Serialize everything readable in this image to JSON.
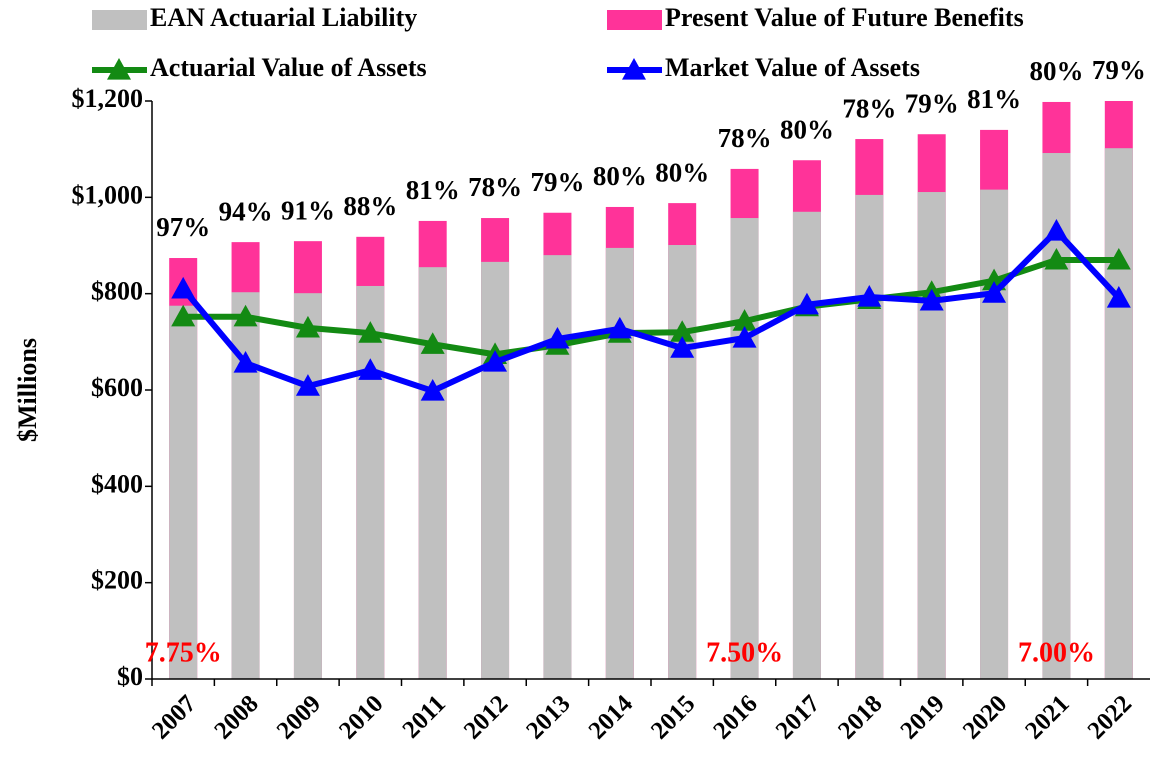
{
  "chart_data": {
    "type": "bar_line",
    "y_label": "$Millions",
    "categories": [
      "2007",
      "2008",
      "2009",
      "2010",
      "2011",
      "2012",
      "2013",
      "2014",
      "2015",
      "2016",
      "2017",
      "2018",
      "2019",
      "2020",
      "2021",
      "2022"
    ],
    "bars": [
      {
        "name": "Present Value of Future Benefits",
        "color": "#ff3399",
        "values": [
          874,
          907,
          909,
          918,
          951,
          957,
          968,
          980,
          988,
          1059,
          1077,
          1121,
          1131,
          1140,
          1198,
          1200
        ]
      },
      {
        "name": "EAN Actuarial Liability",
        "color": "#c0c0c0",
        "values": [
          775,
          803,
          801,
          816,
          855,
          866,
          880,
          895,
          901,
          957,
          970,
          1005,
          1011,
          1016,
          1092,
          1102
        ]
      }
    ],
    "lines": [
      {
        "name": "Actuarial Value of Assets",
        "color": "#138a13",
        "values": [
          752,
          752,
          729,
          718,
          695,
          674,
          693,
          718,
          720,
          743,
          773,
          788,
          803,
          827,
          870,
          870
        ]
      },
      {
        "name": "Market Value of Assets",
        "color": "#0000ff",
        "values": [
          810,
          656,
          608,
          641,
          598,
          658,
          706,
          727,
          687,
          708,
          777,
          793,
          785,
          801,
          930,
          791
        ]
      }
    ],
    "funded_ratio_labels": [
      "97%",
      "94%",
      "91%",
      "88%",
      "81%",
      "78%",
      "79%",
      "80%",
      "80%",
      "78%",
      "80%",
      "78%",
      "79%",
      "81%",
      "80%",
      "79%"
    ],
    "annotations": [
      {
        "text": "7.75%",
        "at": "2007",
        "color": "#ff0000"
      },
      {
        "text": "7.50%",
        "at": "2016",
        "color": "#ff0000"
      },
      {
        "text": "7.00%",
        "at": "2021",
        "color": "#ff0000"
      }
    ],
    "ylim": [
      0,
      1200
    ],
    "yticks": [
      {
        "value": 0,
        "label": "$0"
      },
      {
        "value": 200,
        "label": "$200"
      },
      {
        "value": 400,
        "label": "$400"
      },
      {
        "value": 600,
        "label": "$600"
      },
      {
        "value": 800,
        "label": "$800"
      },
      {
        "value": 1000,
        "label": "$1,000"
      },
      {
        "value": 1200,
        "label": "$1,200"
      }
    ]
  }
}
